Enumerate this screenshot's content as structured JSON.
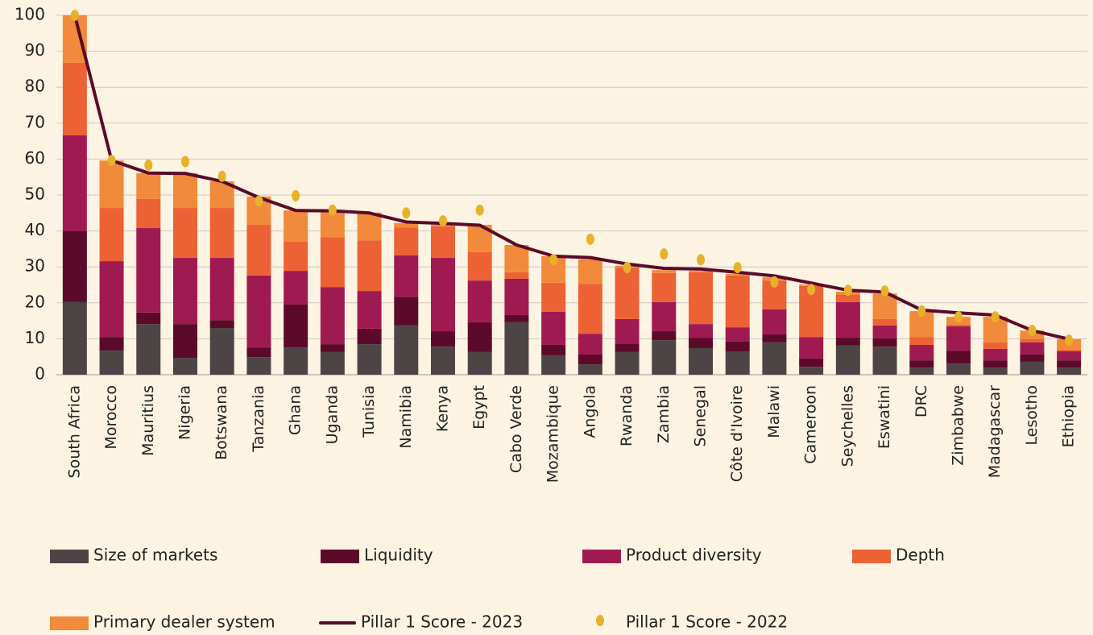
{
  "chart_data": {
    "type": "bar",
    "categories": [
      "South Africa",
      "Morocco",
      "Mauritius",
      "Nigeria",
      "Botswana",
      "Tanzania",
      "Ghana",
      "Uganda",
      "Tunisia",
      "Namibia",
      "Kenya",
      "Egypt",
      "Cabo Verde",
      "Mozambique",
      "Angola",
      "Rwanda",
      "Zambia",
      "Senegal",
      "Côte d'Ivoire",
      "Malawi",
      "Cameroon",
      "Seychelles",
      "Eswatini",
      "DRC",
      "Zimbabwe",
      "Madagascar",
      "Lesotho",
      "Ethiopia"
    ],
    "series": [
      {
        "name": "Size of markets",
        "kind": "bar",
        "color": "#4d4545",
        "values": [
          20.2,
          6.7,
          14.1,
          4.7,
          13,
          4.9,
          7.6,
          6.3,
          8.5,
          13.7,
          7.8,
          6.3,
          14.6,
          5.4,
          2.9,
          6.3,
          9.6,
          7.4,
          6.5,
          9,
          2.2,
          8.1,
          7.8,
          2,
          3.1,
          2,
          3.6,
          2
        ]
      },
      {
        "name": "Liquidity",
        "kind": "bar",
        "color": "#5c0a2a",
        "values": [
          19.8,
          3.8,
          3.2,
          9.4,
          2.2,
          2.7,
          11.9,
          2.2,
          4.3,
          8,
          4.3,
          8.3,
          2,
          2.9,
          2.7,
          2.4,
          2.5,
          2.9,
          2.7,
          2.2,
          2.3,
          2.2,
          2.3,
          2,
          3.6,
          2,
          2,
          2
        ]
      },
      {
        "name": "Product diversity",
        "kind": "bar",
        "color": "#a01a52",
        "values": [
          26.6,
          21.1,
          23.5,
          18.4,
          17.3,
          20,
          9.4,
          15.9,
          10.5,
          11.5,
          20.4,
          11.6,
          10.1,
          9.2,
          5.8,
          6.8,
          8.1,
          3.8,
          4,
          7,
          6,
          9.9,
          3.6,
          4.3,
          6.8,
          3.2,
          3.4,
          2.5
        ]
      },
      {
        "name": "Depth",
        "kind": "bar",
        "color": "#ec6235",
        "values": [
          20.2,
          14.8,
          8.1,
          13.9,
          13.9,
          14.1,
          8.1,
          13.9,
          14.1,
          7.8,
          8.8,
          7.9,
          1.8,
          8.1,
          13.9,
          14.3,
          8.1,
          14.4,
          14.4,
          8,
          14.2,
          2,
          1.8,
          2.2,
          0.4,
          1.8,
          0.9,
          0.5
        ]
      },
      {
        "name": "Primary dealer system",
        "kind": "bar",
        "color": "#f18a3a",
        "values": [
          13.2,
          13.2,
          7.2,
          9.7,
          7.4,
          7.9,
          8.7,
          7.2,
          7.7,
          1.2,
          0.4,
          7.6,
          7.6,
          7.4,
          6.8,
          0.5,
          0.8,
          0.4,
          0.4,
          0.9,
          0.4,
          0.9,
          7.1,
          7.2,
          2.2,
          7.1,
          2.4,
          2.9
        ]
      },
      {
        "name": "Pillar 1 Score - 2023",
        "kind": "line",
        "color": "#5a0a28",
        "values": [
          100,
          59.6,
          56.1,
          56,
          53.8,
          49.3,
          45.7,
          45.6,
          45,
          42.5,
          42.1,
          41.6,
          36.1,
          33,
          32.6,
          30.8,
          29.6,
          29.4,
          28.5,
          27.5,
          25.5,
          23.5,
          23,
          18,
          17.2,
          16.6,
          12.3,
          9.9
        ]
      },
      {
        "name": "Pillar 1 Score - 2022",
        "kind": "dot",
        "color": "#e8b12a",
        "values": [
          100,
          59.6,
          58.3,
          59.3,
          55.2,
          48.3,
          49.8,
          45.8,
          null,
          45,
          42.8,
          45.8,
          null,
          32,
          37.7,
          29.8,
          33.6,
          32,
          29.8,
          25.8,
          23.7,
          23.5,
          23.3,
          17.7,
          16.1,
          16.1,
          12.3,
          9.6
        ]
      }
    ],
    "ylim": [
      0,
      100
    ],
    "yticks": [
      0,
      10,
      20,
      30,
      40,
      50,
      60,
      70,
      80,
      90,
      100
    ],
    "grid": true
  }
}
